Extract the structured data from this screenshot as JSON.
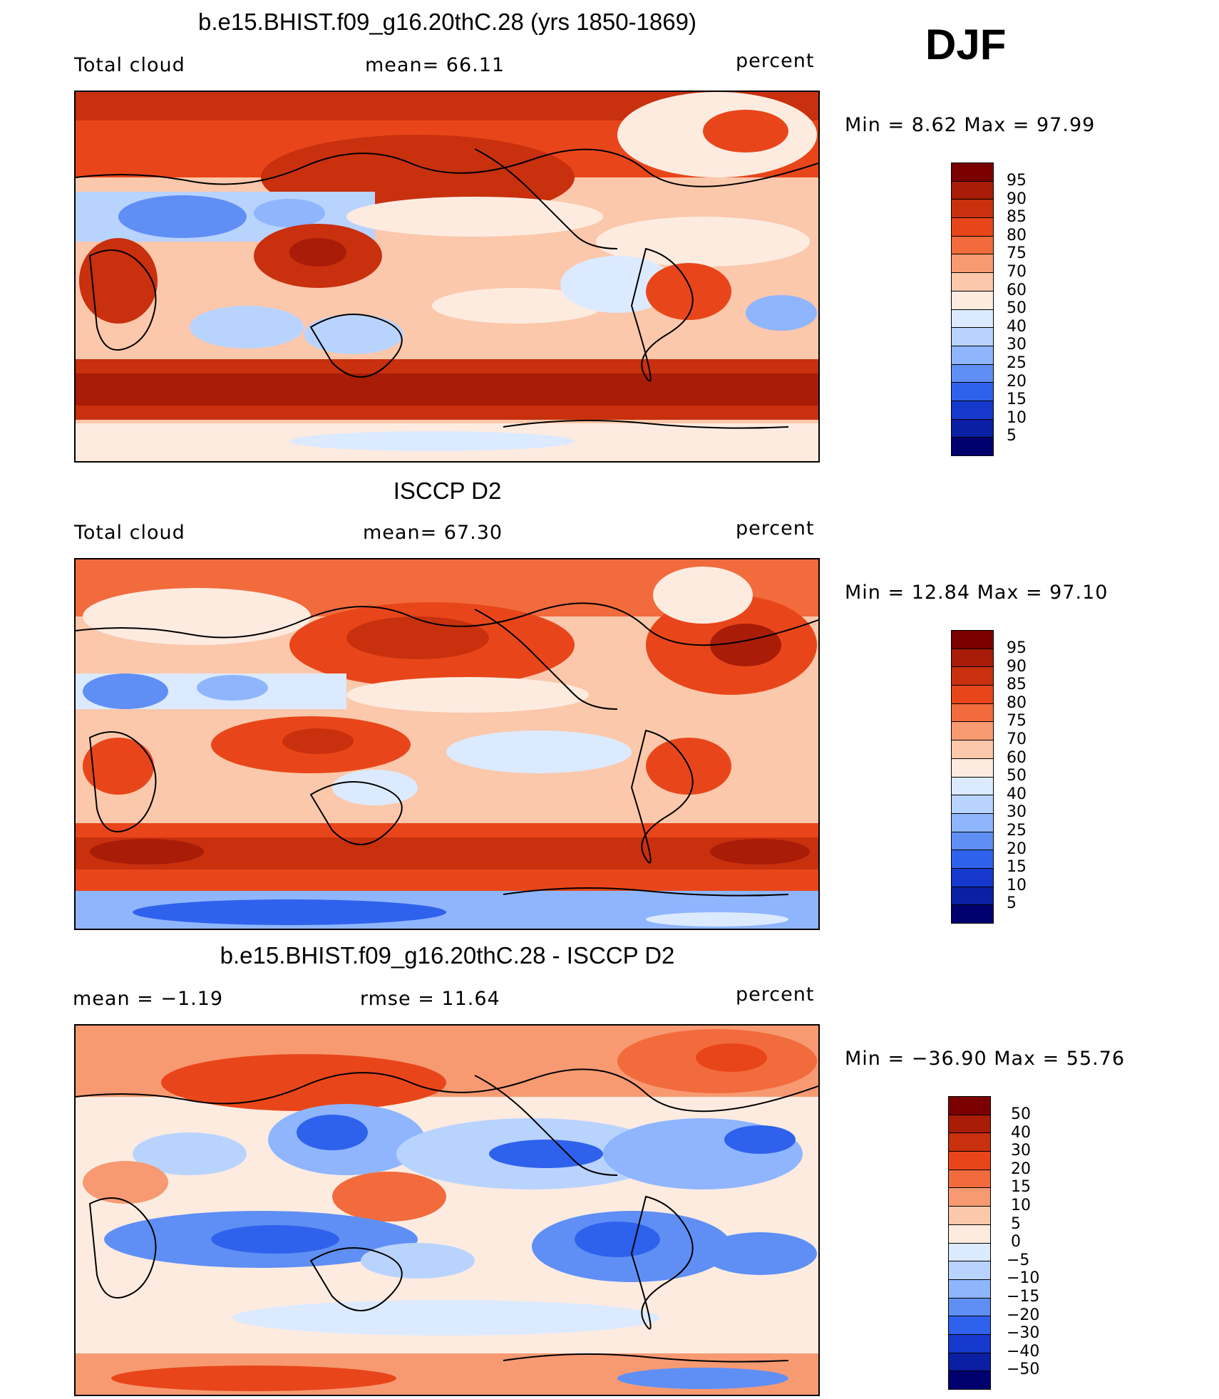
{
  "season": "DJF",
  "panels": [
    {
      "title": "b.e15.BHIST.f09_g16.20thC.28 (yrs 1850-1869)",
      "left_label": "Total cloud",
      "center_label": "mean=   66.11",
      "right_label": "percent",
      "minmax": "Min  =    8.62  Max  =   97.99",
      "colorbar_labels": [
        "95",
        "90",
        "85",
        "80",
        "75",
        "70",
        "60",
        "50",
        "40",
        "30",
        "25",
        "20",
        "15",
        "10",
        "5"
      ]
    },
    {
      "title": "ISCCP D2",
      "left_label": "Total cloud",
      "center_label": "mean=   67.30",
      "right_label": "percent",
      "minmax": "Min  =   12.84  Max  =   97.10",
      "colorbar_labels": [
        "95",
        "90",
        "85",
        "80",
        "75",
        "70",
        "60",
        "50",
        "40",
        "30",
        "25",
        "20",
        "15",
        "10",
        "5"
      ]
    },
    {
      "title": "b.e15.BHIST.f09_g16.20thC.28 - ISCCP D2",
      "left_label": "mean  =   −1.19",
      "center_label": "rmse  =   11.64",
      "right_label": "percent",
      "minmax": "Min  = −36.90  Max  =   55.76",
      "colorbar_labels": [
        "50",
        "40",
        "30",
        "20",
        "15",
        "10",
        "5",
        "0",
        "−5",
        "−10",
        "−15",
        "−20",
        "−30",
        "−40",
        "−50"
      ]
    }
  ],
  "colors": {
    "scale": [
      "#7a0000",
      "#a81c08",
      "#c8300e",
      "#e8461a",
      "#f26b3c",
      "#f79a72",
      "#fbc8ab",
      "#fdebe0",
      "#dceaff",
      "#b9d3ff",
      "#8fb5ff",
      "#5f8ff5",
      "#2f62ec",
      "#1439cc",
      "#0a1fa3",
      "#00006e"
    ]
  }
}
